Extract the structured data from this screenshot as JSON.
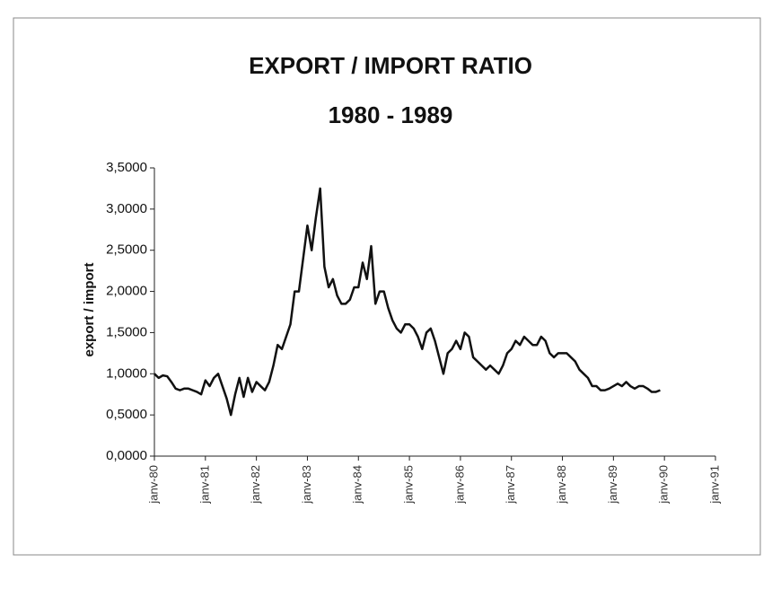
{
  "chart_data": {
    "type": "line",
    "title": "EXPORT / IMPORT RATIO",
    "subtitle": "1980 - 1989",
    "y_label": "export / import",
    "color": "#111111",
    "grid": false,
    "xlim": [
      "1980-01",
      "1991-01"
    ],
    "xticks": [
      {
        "value": "1980-01",
        "label": "janv-80"
      },
      {
        "value": "1981-01",
        "label": "janv-81"
      },
      {
        "value": "1982-01",
        "label": "janv-82"
      },
      {
        "value": "1983-01",
        "label": "janv-83"
      },
      {
        "value": "1984-01",
        "label": "janv-84"
      },
      {
        "value": "1985-01",
        "label": "janv-85"
      },
      {
        "value": "1986-01",
        "label": "janv-86"
      },
      {
        "value": "1987-01",
        "label": "janv-87"
      },
      {
        "value": "1988-01",
        "label": "janv-88"
      },
      {
        "value": "1989-01",
        "label": "janv-89"
      },
      {
        "value": "1990-01",
        "label": "janv-90"
      },
      {
        "value": "1991-01",
        "label": "janv-91"
      }
    ],
    "ylim": [
      0,
      3.5
    ],
    "yticks": [
      {
        "value": 0,
        "label": "0,0000"
      },
      {
        "value": 0.5,
        "label": "0,5000"
      },
      {
        "value": 1,
        "label": "1,0000"
      },
      {
        "value": 1.5,
        "label": "1,5000"
      },
      {
        "value": 2,
        "label": "2,0000"
      },
      {
        "value": 2.5,
        "label": "2,5000"
      },
      {
        "value": 3,
        "label": "3,0000"
      },
      {
        "value": 3.5,
        "label": "3,5000"
      }
    ],
    "x": [
      "1980-01",
      "1980-02",
      "1980-03",
      "1980-04",
      "1980-05",
      "1980-06",
      "1980-07",
      "1980-08",
      "1980-09",
      "1980-10",
      "1980-11",
      "1980-12",
      "1981-01",
      "1981-02",
      "1981-03",
      "1981-04",
      "1981-05",
      "1981-06",
      "1981-07",
      "1981-08",
      "1981-09",
      "1981-10",
      "1981-11",
      "1981-12",
      "1982-01",
      "1982-02",
      "1982-03",
      "1982-04",
      "1982-05",
      "1982-06",
      "1982-07",
      "1982-08",
      "1982-09",
      "1982-10",
      "1982-11",
      "1982-12",
      "1983-01",
      "1983-02",
      "1983-03",
      "1983-04",
      "1983-05",
      "1983-06",
      "1983-07",
      "1983-08",
      "1983-09",
      "1983-10",
      "1983-11",
      "1983-12",
      "1984-01",
      "1984-02",
      "1984-03",
      "1984-04",
      "1984-05",
      "1984-06",
      "1984-07",
      "1984-08",
      "1984-09",
      "1984-10",
      "1984-11",
      "1984-12",
      "1985-01",
      "1985-02",
      "1985-03",
      "1985-04",
      "1985-05",
      "1985-06",
      "1985-07",
      "1985-08",
      "1985-09",
      "1985-10",
      "1985-11",
      "1985-12",
      "1986-01",
      "1986-02",
      "1986-03",
      "1986-04",
      "1986-05",
      "1986-06",
      "1986-07",
      "1986-08",
      "1986-09",
      "1986-10",
      "1986-11",
      "1986-12",
      "1987-01",
      "1987-02",
      "1987-03",
      "1987-04",
      "1987-05",
      "1987-06",
      "1987-07",
      "1987-08",
      "1987-09",
      "1987-10",
      "1987-11",
      "1987-12",
      "1988-01",
      "1988-02",
      "1988-03",
      "1988-04",
      "1988-05",
      "1988-06",
      "1988-07",
      "1988-08",
      "1988-09",
      "1988-10",
      "1988-11",
      "1988-12",
      "1989-01",
      "1989-02",
      "1989-03",
      "1989-04",
      "1989-05",
      "1989-06",
      "1989-07",
      "1989-08",
      "1989-09",
      "1989-10",
      "1989-11",
      "1989-12"
    ],
    "values": [
      1.0,
      0.95,
      0.98,
      0.97,
      0.9,
      0.82,
      0.8,
      0.82,
      0.82,
      0.8,
      0.78,
      0.75,
      0.92,
      0.85,
      0.95,
      1.0,
      0.85,
      0.7,
      0.5,
      0.75,
      0.95,
      0.72,
      0.95,
      0.78,
      0.9,
      0.85,
      0.8,
      0.9,
      1.1,
      1.35,
      1.3,
      1.45,
      1.6,
      2.0,
      2.0,
      2.4,
      2.8,
      2.5,
      2.9,
      3.25,
      2.3,
      2.05,
      2.15,
      1.95,
      1.85,
      1.85,
      1.9,
      2.05,
      2.05,
      2.35,
      2.15,
      2.55,
      1.85,
      2.0,
      2.0,
      1.8,
      1.65,
      1.55,
      1.5,
      1.6,
      1.6,
      1.55,
      1.45,
      1.3,
      1.5,
      1.55,
      1.4,
      1.2,
      1.0,
      1.25,
      1.3,
      1.4,
      1.3,
      1.5,
      1.45,
      1.2,
      1.15,
      1.1,
      1.05,
      1.1,
      1.05,
      1.0,
      1.1,
      1.25,
      1.3,
      1.4,
      1.35,
      1.45,
      1.4,
      1.35,
      1.35,
      1.45,
      1.4,
      1.25,
      1.2,
      1.25,
      1.25,
      1.25,
      1.2,
      1.15,
      1.05,
      1.0,
      0.95,
      0.85,
      0.85,
      0.8,
      0.8,
      0.82,
      0.85,
      0.88,
      0.85,
      0.9,
      0.85,
      0.82,
      0.85,
      0.85,
      0.82,
      0.78,
      0.78,
      0.8
    ]
  }
}
